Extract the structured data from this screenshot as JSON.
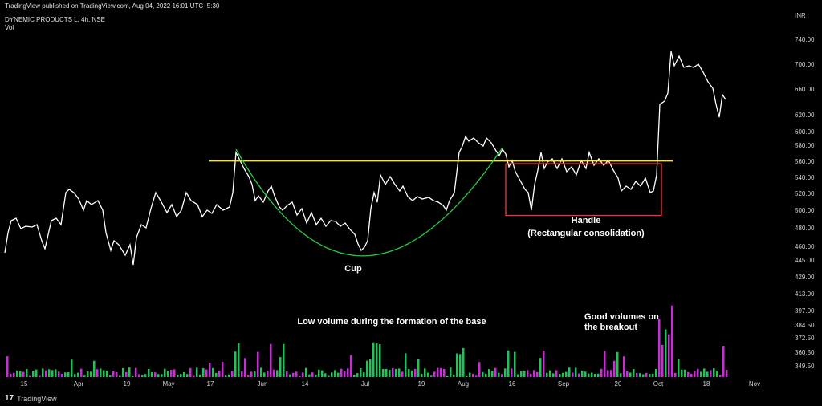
{
  "header": {
    "published": "TradingView published on TradingView.com, Aug 04, 2022 16:01 UTC+5:30",
    "symbol": "DYNEMIC PRODUCTS L, 4h, NSE",
    "vol": "Vol"
  },
  "footer": {
    "brand": "TradingView"
  },
  "colors": {
    "background": "#000000",
    "price_line": "#ffffff",
    "resistance": "#f5e250",
    "cup": "#22cc44",
    "handle_box": "#ff3333",
    "volume_up": "#26c259",
    "volume_down": "#c92fd6",
    "axis_text": "#d0d0d0"
  },
  "chart_data": {
    "type": "line",
    "currency": "INR",
    "price_axis_ticks": [
      740,
      700,
      660,
      620,
      600,
      580,
      560,
      540,
      520,
      500,
      480,
      460,
      445,
      429,
      413,
      397,
      384.5,
      372.5,
      360.5,
      349.5
    ],
    "price_axis_labels": [
      "INR",
      "740.00",
      "700.00",
      "660.00",
      "620.00",
      "600.00",
      "580.00",
      "560.00",
      "540.00",
      "520.00",
      "500.00",
      "480.00",
      "460.00",
      "445.00",
      "429.00",
      "413.00",
      "397.00",
      "384.50",
      "372.50",
      "360.50",
      "349.50"
    ],
    "time_labels": [
      "15",
      "Apr",
      "19",
      "May",
      "17",
      "Jun",
      "14",
      "Jul",
      "19",
      "Aug",
      "16",
      "Sep",
      "20",
      "Oct",
      "18",
      "Nov"
    ],
    "price_series": [
      [
        "15",
        470
      ],
      [
        "Apr",
        505
      ],
      [
        "19",
        490
      ],
      [
        "May",
        515
      ],
      [
        "17",
        510
      ],
      [
        "Jun",
        520
      ],
      [
        "14",
        495
      ],
      [
        "Jul",
        470
      ],
      [
        "19",
        535
      ],
      [
        "Aug",
        590
      ],
      [
        "16",
        550
      ],
      [
        "Sep",
        560
      ],
      [
        "20",
        535
      ],
      [
        "Oct",
        700
      ],
      [
        "18",
        670
      ]
    ],
    "annotations": {
      "cup": "Cup",
      "handle": "Handle",
      "handle_sub": "(Rectangular consolidation)",
      "low_volume": "Low volume during the formation of the base",
      "good_volume_1": "Good volumes on",
      "good_volume_2": "the breakout"
    },
    "resistance_level": 580,
    "handle_range": [
      505,
      575
    ],
    "cup_low": 452,
    "grid": false,
    "legend": "none"
  }
}
